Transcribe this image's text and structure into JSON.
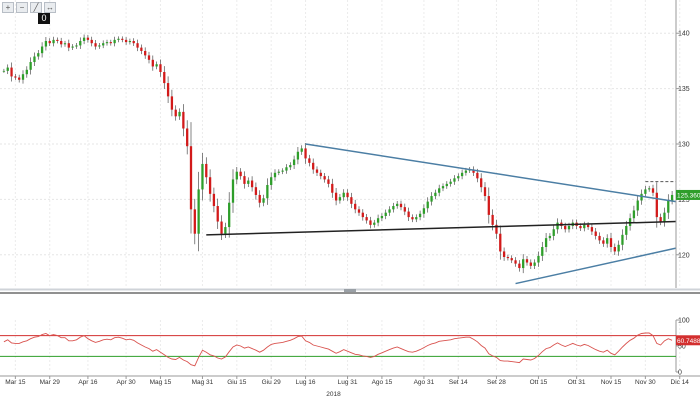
{
  "toolbar": {
    "icons": [
      "zoom-in-icon",
      "zoom-out-icon",
      "draw-line-icon",
      "measure-icon"
    ],
    "glyphs": [
      "+",
      "−",
      "╱",
      "↔"
    ],
    "badge": "0"
  },
  "chart_data": [
    {
      "type": "candlestick",
      "title": "",
      "xlabel": "2018",
      "ylabel": "",
      "ylim": [
        117,
        143
      ],
      "yticks": [
        120,
        125,
        130,
        135,
        140
      ],
      "ytick_labels": [
        "120",
        "125",
        "130",
        "135",
        "140"
      ],
      "x_ticks": [
        {
          "label": "Mar 15",
          "index": 3
        },
        {
          "label": "Mar 29",
          "index": 12
        },
        {
          "label": "Apr 16",
          "index": 22
        },
        {
          "label": "Apr 30",
          "index": 32
        },
        {
          "label": "Mag 15",
          "index": 41
        },
        {
          "label": "Mag 31",
          "index": 52
        },
        {
          "label": "Giu 15",
          "index": 61
        },
        {
          "label": "Giu 29",
          "index": 70
        },
        {
          "label": "Lug 16",
          "index": 79
        },
        {
          "label": "Lug 31",
          "index": 90
        },
        {
          "label": "Ago 15",
          "index": 99
        },
        {
          "label": "Ago 31",
          "index": 110
        },
        {
          "label": "Set 14",
          "index": 119
        },
        {
          "label": "Set 28",
          "index": 129
        },
        {
          "label": "Ott 15",
          "index": 140
        },
        {
          "label": "Ott 31",
          "index": 150
        },
        {
          "label": "Nov 15",
          "index": 159
        },
        {
          "label": "Nov 30",
          "index": 168
        },
        {
          "label": "Dic 14",
          "index": 177
        }
      ],
      "last_price_label": "125.360",
      "up_color": "#2e9e2a",
      "down_color": "#d21a1a",
      "close": [
        136.6,
        136.9,
        136.1,
        136.0,
        135.8,
        136.3,
        136.7,
        137.4,
        137.9,
        138.2,
        138.8,
        139.3,
        139.1,
        139.4,
        139.3,
        139.0,
        139.1,
        138.7,
        138.8,
        138.9,
        139.3,
        139.6,
        139.4,
        139.1,
        138.8,
        138.9,
        139.1,
        139.2,
        139.1,
        139.4,
        139.5,
        139.4,
        139.2,
        139.3,
        139.1,
        138.7,
        138.4,
        138.0,
        137.6,
        137.0,
        137.2,
        136.5,
        135.5,
        134.3,
        133.1,
        132.5,
        132.9,
        131.4,
        129.8,
        124.1,
        121.9,
        125.9,
        128.2,
        127.0,
        125.5,
        124.4,
        123.0,
        121.9,
        122.5,
        124.7,
        126.8,
        127.5,
        127.1,
        126.4,
        126.7,
        126.1,
        125.4,
        124.7,
        125.1,
        126.3,
        127.0,
        127.4,
        127.5,
        127.6,
        127.9,
        128.1,
        128.6,
        129.3,
        129.6,
        128.7,
        128.3,
        127.7,
        127.4,
        127.1,
        126.8,
        126.4,
        125.6,
        124.9,
        125.2,
        125.6,
        125.2,
        124.6,
        124.1,
        123.8,
        123.4,
        123.1,
        122.7,
        122.9,
        123.3,
        123.5,
        123.8,
        124.1,
        124.4,
        124.6,
        124.3,
        123.9,
        123.4,
        123.2,
        123.4,
        123.7,
        124.2,
        124.8,
        125.3,
        125.6,
        126.0,
        126.2,
        126.4,
        126.6,
        126.9,
        127.1,
        127.4,
        127.6,
        127.7,
        127.4,
        126.9,
        126.1,
        125.3,
        123.6,
        122.7,
        121.9,
        120.3,
        119.8,
        119.7,
        119.5,
        119.2,
        118.8,
        119.6,
        119.3,
        119.0,
        119.3,
        119.9,
        120.7,
        121.5,
        121.7,
        122.3,
        122.9,
        122.6,
        122.3,
        122.6,
        122.9,
        122.6,
        122.4,
        122.7,
        122.5,
        122.1,
        121.7,
        121.3,
        121.0,
        121.5,
        120.7,
        120.3,
        120.9,
        121.8,
        122.6,
        123.3,
        124.0,
        124.9,
        125.5,
        125.9,
        126.0,
        125.6,
        123.4,
        123.0,
        123.8,
        124.9,
        125.4
      ],
      "trendlines": [
        {
          "name": "upper-resistance",
          "color": "#4b7ea4",
          "from": {
            "index": 79,
            "value": 130.0
          },
          "to": {
            "index": 184,
            "value": 124.8
          }
        },
        {
          "name": "horizontal-support",
          "color": "#222222",
          "from": {
            "index": 53,
            "value": 121.8
          },
          "to": {
            "index": 184,
            "value": 123.0
          }
        },
        {
          "name": "lower-support",
          "color": "#4b7ea4",
          "from": {
            "index": 134,
            "value": 117.4
          },
          "to": {
            "index": 184,
            "value": 120.6
          }
        },
        {
          "name": "recent-high",
          "color": "#555555",
          "dashed": true,
          "from": {
            "index": 168,
            "value": 126.6
          },
          "to": {
            "index": 184,
            "value": 126.6
          }
        }
      ]
    },
    {
      "type": "line",
      "title": "",
      "ylim": [
        0,
        100
      ],
      "yticks": [
        0,
        50,
        100
      ],
      "ytick_labels": [
        "0",
        "50",
        "100"
      ],
      "reference_lines": [
        {
          "value": 70,
          "color": "#d32f2f"
        },
        {
          "value": 30,
          "color": "#2e9e2a"
        }
      ],
      "last_value_label": "60.7488",
      "series": [
        {
          "name": "",
          "color": "#d9534f",
          "values": [
            58,
            62,
            56,
            55,
            55,
            58,
            60,
            64,
            67,
            68,
            72,
            74,
            70,
            72,
            70,
            66,
            66,
            60,
            60,
            62,
            67,
            70,
            64,
            60,
            57,
            59,
            62,
            63,
            62,
            66,
            67,
            65,
            62,
            63,
            61,
            56,
            52,
            48,
            45,
            40,
            43,
            38,
            33,
            28,
            25,
            24,
            28,
            23,
            20,
            14,
            12,
            28,
            42,
            38,
            33,
            31,
            27,
            25,
            29,
            39,
            48,
            52,
            50,
            46,
            48,
            45,
            42,
            38,
            42,
            48,
            53,
            55,
            56,
            57,
            59,
            61,
            64,
            68,
            69,
            60,
            57,
            52,
            50,
            48,
            46,
            44,
            40,
            36,
            39,
            43,
            40,
            37,
            34,
            33,
            31,
            30,
            28,
            30,
            34,
            37,
            40,
            43,
            46,
            48,
            45,
            42,
            39,
            38,
            40,
            43,
            47,
            51,
            54,
            56,
            59,
            60,
            61,
            62,
            64,
            65,
            66,
            67,
            67,
            63,
            58,
            51,
            46,
            35,
            31,
            28,
            22,
            21,
            21,
            20,
            19,
            18,
            25,
            24,
            23,
            26,
            32,
            39,
            45,
            47,
            52,
            56,
            52,
            49,
            52,
            55,
            52,
            50,
            53,
            51,
            47,
            43,
            40,
            38,
            42,
            36,
            33,
            40,
            48,
            55,
            61,
            65,
            71,
            74,
            75,
            75,
            70,
            55,
            52,
            60,
            64,
            61
          ]
        }
      ]
    }
  ]
}
